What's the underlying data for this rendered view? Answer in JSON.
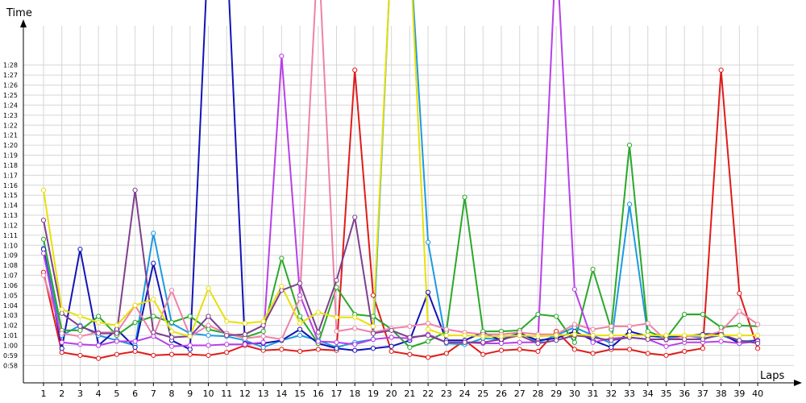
{
  "chart_data": {
    "type": "line",
    "xlabel": "Laps",
    "ylabel": "Time",
    "x": [
      1,
      2,
      3,
      4,
      5,
      6,
      7,
      8,
      9,
      10,
      11,
      12,
      13,
      14,
      15,
      16,
      17,
      18,
      19,
      20,
      21,
      22,
      23,
      24,
      25,
      26,
      27,
      28,
      29,
      30,
      31,
      32,
      33,
      34,
      35,
      36,
      37,
      38,
      39,
      40
    ],
    "xlim": [
      1,
      40
    ],
    "ylim_seconds": [
      57,
      90
    ],
    "y_tick_labels": [
      "0:58",
      "0:59",
      "1:00",
      "1:01",
      "1:02",
      "1:03",
      "1:04",
      "1:05",
      "1:06",
      "1:07",
      "1:08",
      "1:09",
      "1:10",
      "1:11",
      "1:12",
      "1:13",
      "1:14",
      "1:15",
      "1:16",
      "1:17",
      "1:18",
      "1:19",
      "1:20",
      "1:21",
      "1:22",
      "1:23",
      "1:24",
      "1:25",
      "1:26",
      "1:27",
      "1:28"
    ],
    "grid": true,
    "series": [
      {
        "color": "#e01b1b",
        "values": [
          67.3,
          59.3,
          59.0,
          58.7,
          59.1,
          59.4,
          59.0,
          59.1,
          59.1,
          59.0,
          59.3,
          60.0,
          59.5,
          59.6,
          59.4,
          59.6,
          59.5,
          87.5,
          65.0,
          59.4,
          59.1,
          58.8,
          59.2,
          60.5,
          59.1,
          59.5,
          59.6,
          59.4,
          61.4,
          59.6,
          59.2,
          59.6,
          59.6,
          59.2,
          59.0,
          59.4,
          59.7,
          87.5,
          65.2,
          59.7
        ]
      },
      {
        "color": "#1e9ae0",
        "values": [
          69.7,
          61.0,
          62.0,
          61.0,
          60.5,
          60.0,
          71.2,
          62.2,
          61.2,
          61.0,
          60.9,
          60.5,
          59.8,
          60.5,
          61.0,
          60.5,
          59.8,
          60.3,
          60.6,
          100,
          100,
          70.3,
          60.2,
          60.1,
          60.7,
          60.6,
          61.3,
          60.3,
          61.0,
          61.8,
          61.0,
          60.2,
          74.1,
          61.0,
          60.7,
          61.0,
          60.7,
          61.0,
          60.4,
          60.5
        ]
      },
      {
        "color": "#1414b4",
        "values": [
          69.6,
          59.7,
          69.6,
          60.0,
          61.6,
          59.8,
          68.2,
          60.5,
          59.6,
          100,
          100,
          60.2,
          60.2,
          60.5,
          61.6,
          60.2,
          59.7,
          59.5,
          59.7,
          59.9,
          60.5,
          65.3,
          60.5,
          60.5,
          61.3,
          60.5,
          61.2,
          60.5,
          60.7,
          61.4,
          60.5,
          59.8,
          61.4,
          60.9,
          60.9,
          60.9,
          61.1,
          61.2,
          60.2,
          60.5
        ]
      },
      {
        "color": "#2aa82a",
        "values": [
          70.6,
          61.5,
          61.5,
          62.9,
          61.0,
          62.3,
          62.9,
          62.3,
          62.9,
          61.6,
          61.2,
          60.8,
          61.4,
          68.7,
          62.9,
          60.2,
          65.8,
          63.1,
          62.9,
          61.6,
          59.8,
          60.4,
          61.4,
          74.8,
          61.4,
          61.4,
          61.5,
          63.1,
          62.9,
          60.3,
          67.6,
          61.6,
          80.0,
          61.4,
          60.7,
          63.1,
          63.1,
          61.8,
          62.0,
          61.9
        ]
      },
      {
        "color": "#ee82a6",
        "values": [
          67.0,
          61.2,
          60.9,
          61.3,
          61.3,
          64.0,
          60.9,
          65.5,
          60.9,
          62.0,
          61.2,
          60.7,
          60.9,
          60.6,
          64.7,
          100,
          61.4,
          61.7,
          61.3,
          61.7,
          61.9,
          62.2,
          61.6,
          61.3,
          61.1,
          61.1,
          61.3,
          61.1,
          61.1,
          62.1,
          61.6,
          61.9,
          61.9,
          62.2,
          60.5,
          60.9,
          60.9,
          61.4,
          63.4,
          62.1
        ]
      },
      {
        "color": "#b840e8",
        "values": [
          69.2,
          60.3,
          60.1,
          60.0,
          60.4,
          60.4,
          60.9,
          59.9,
          60.0,
          60.0,
          60.1,
          60.1,
          60.3,
          88.9,
          65.0,
          60.4,
          60.3,
          60.1,
          60.6,
          60.8,
          60.7,
          61.1,
          60.3,
          60.3,
          60.2,
          60.2,
          60.3,
          60.3,
          100,
          65.6,
          60.3,
          60.7,
          60.8,
          60.6,
          59.9,
          60.3,
          60.3,
          60.4,
          60.2,
          60.4
        ]
      },
      {
        "color": "#7f3f8f",
        "values": [
          72.5,
          63.2,
          61.9,
          61.2,
          61.2,
          75.5,
          61.3,
          60.8,
          60.9,
          62.9,
          61.0,
          61.1,
          62.0,
          65.5,
          66.2,
          61.3,
          66.5,
          72.8,
          61.2,
          61.5,
          60.8,
          61.0,
          60.3,
          60.3,
          60.3,
          60.6,
          61.0,
          60.2,
          60.5,
          61.0,
          60.8,
          60.5,
          60.8,
          60.6,
          60.6,
          60.6,
          60.6,
          61.1,
          60.5,
          60.2
        ]
      },
      {
        "color": "#e8e00a",
        "values": [
          75.5,
          63.6,
          62.9,
          62.3,
          62.0,
          64.0,
          64.6,
          61.4,
          60.9,
          65.7,
          62.4,
          62.2,
          62.4,
          65.9,
          62.2,
          63.3,
          62.8,
          62.8,
          61.9,
          100,
          100,
          61.6,
          61.0,
          61.0,
          60.9,
          60.9,
          61.0,
          60.9,
          61.0,
          61.1,
          61.0,
          61.0,
          61.0,
          61.0,
          61.0,
          61.0,
          61.0,
          61.0,
          61.0,
          61.0
        ]
      }
    ],
    "series_markers": [
      {
        "color": "#e01b1b",
        "markers": [
          1,
          2,
          3,
          4,
          5,
          6,
          7,
          8,
          9,
          10,
          11,
          12,
          13,
          14,
          15,
          16,
          17,
          18,
          19,
          20,
          21,
          22,
          23,
          24,
          25,
          26,
          27,
          28,
          29,
          30,
          31,
          32,
          33,
          34,
          35,
          36,
          37,
          38,
          39,
          40
        ]
      },
      {
        "color": "#1e9ae0",
        "markers": [
          1,
          2,
          3,
          4,
          5,
          6,
          7,
          8,
          9,
          10,
          11,
          12,
          13,
          14,
          15,
          16,
          17,
          18,
          19,
          22,
          23,
          24,
          25,
          26,
          27,
          28,
          29,
          30,
          31,
          32,
          33
        ]
      },
      {
        "color": "#1414b4",
        "markers": [
          1,
          2,
          3,
          4,
          5,
          6,
          7,
          8,
          9,
          11,
          12,
          13,
          14,
          15,
          16,
          17,
          18,
          19,
          20,
          21,
          22,
          23,
          24,
          25,
          26,
          27,
          28,
          29,
          30,
          31,
          32,
          33,
          34,
          35,
          36,
          37,
          38,
          39,
          40
        ]
      },
      {
        "color": "#2aa82a",
        "markers": [
          1,
          2,
          3,
          4,
          5,
          6,
          7,
          8,
          9,
          10,
          11,
          12,
          13,
          14,
          15,
          16,
          17,
          18,
          19,
          20,
          21,
          22,
          23,
          24,
          25,
          26,
          27,
          28,
          29,
          30,
          31,
          32,
          33,
          34,
          35,
          36,
          37,
          38,
          39
        ]
      },
      {
        "color": "#ee82a6",
        "markers": [
          1,
          2,
          3,
          4,
          5,
          6,
          7,
          8,
          9,
          10,
          11,
          12,
          13,
          14,
          15,
          17,
          18,
          19,
          20,
          21,
          22,
          23,
          24,
          25,
          26,
          27,
          28,
          29,
          30,
          31,
          32,
          33,
          34,
          35,
          36,
          37,
          38,
          39,
          40
        ]
      },
      {
        "color": "#b840e8",
        "markers": [
          1,
          2,
          3,
          4,
          5,
          6,
          7,
          8,
          9,
          10,
          11,
          12,
          13,
          14,
          15,
          16,
          17,
          18,
          19,
          20,
          21,
          22,
          23,
          24,
          25,
          26,
          27,
          28,
          30,
          31,
          32,
          33,
          34,
          35,
          36,
          37,
          38,
          39,
          40
        ]
      },
      {
        "color": "#7f3f8f",
        "markers": [
          1,
          2,
          3,
          4,
          5,
          6,
          7,
          8,
          9,
          10,
          11,
          12,
          13,
          14,
          15,
          16,
          17,
          18,
          19,
          20,
          21,
          22,
          23,
          24,
          25,
          26,
          27,
          28,
          29,
          30,
          31,
          32,
          33,
          34,
          35,
          36,
          37,
          38,
          39,
          40
        ]
      },
      {
        "color": "#e8e00a",
        "markers": [
          1,
          2,
          3,
          4,
          5,
          6,
          7,
          8,
          9,
          10,
          11,
          12,
          13,
          14,
          15,
          16,
          17,
          18,
          19,
          22,
          23,
          24,
          25,
          26,
          27,
          28,
          29,
          30,
          31,
          32,
          33,
          34,
          35,
          36,
          37,
          38,
          39,
          40
        ]
      }
    ]
  }
}
